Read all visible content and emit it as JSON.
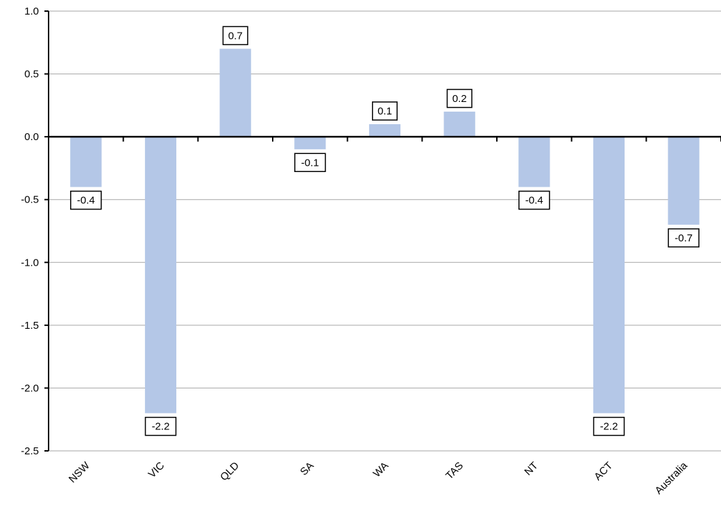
{
  "chart_data": {
    "type": "bar",
    "title": "",
    "xlabel": "",
    "ylabel": "",
    "categories": [
      "NSW",
      "VIC",
      "QLD",
      "SA",
      "WA",
      "TAS",
      "NT",
      "ACT",
      "Australia"
    ],
    "values": [
      -0.4,
      -2.2,
      0.7,
      -0.1,
      0.1,
      0.2,
      -0.4,
      -2.2,
      -0.7
    ],
    "data_labels": [
      "-0.4",
      "-2.2",
      "0.7",
      "-0.1",
      "0.1",
      "0.2",
      "-0.4",
      "-2.2",
      "-0.7"
    ],
    "ylim": [
      -2.5,
      1.0
    ],
    "yticks": [
      1.0,
      0.5,
      0.0,
      -0.5,
      -1.0,
      -1.5,
      -2.0,
      -2.5
    ],
    "ytick_labels": [
      "1.0",
      "0.5",
      "0.0",
      "-0.5",
      "-1.0",
      "-1.5",
      "-2.0",
      "-2.5"
    ],
    "grid": true,
    "legend": "none",
    "colors": {
      "bar": "#b4c7e7",
      "grid": "#a6a6a6",
      "axis": "#000000",
      "label_border": "#000000"
    }
  }
}
